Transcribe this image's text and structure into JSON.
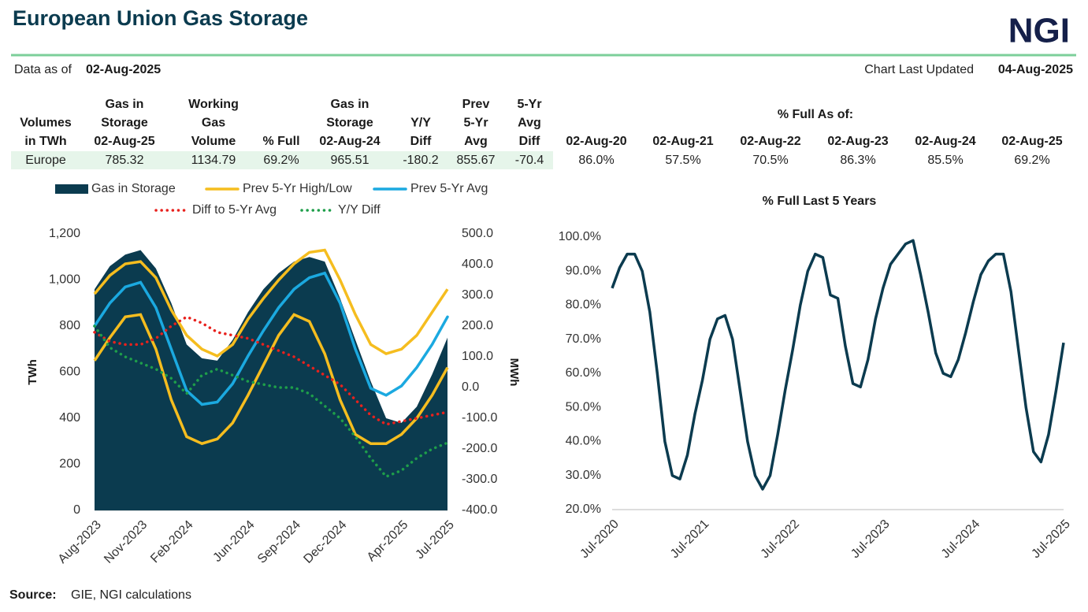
{
  "header": {
    "title": "European Union Gas Storage",
    "logo": "NGI",
    "data_as_of_label": "Data as of",
    "data_as_of": "02-Aug-2025",
    "updated_label": "Chart Last Updated",
    "updated": "04-Aug-2025"
  },
  "table": {
    "headers": [
      [
        "Volumes",
        "in TWh"
      ],
      [
        "Gas in",
        "Storage",
        "02-Aug-25"
      ],
      [
        "Working",
        "Gas",
        "Volume"
      ],
      [
        "% Full"
      ],
      [
        "Gas in",
        "Storage",
        "02-Aug-24"
      ],
      [
        "Y/Y",
        "Diff"
      ],
      [
        "Prev",
        "5-Yr",
        "Avg"
      ],
      [
        "5-Yr",
        "Avg",
        "Diff"
      ]
    ],
    "rows": [
      [
        "Europe",
        "785.32",
        "1134.79",
        "69.2%",
        "965.51",
        "-180.2",
        "855.67",
        "-70.4"
      ]
    ],
    "full_heading": "% Full As of:",
    "full_dates": [
      "02-Aug-20",
      "02-Aug-21",
      "02-Aug-22",
      "02-Aug-23",
      "02-Aug-24",
      "02-Aug-25"
    ],
    "full_values": [
      "86.0%",
      "57.5%",
      "70.5%",
      "86.3%",
      "85.5%",
      "69.2%"
    ]
  },
  "chart_data": [
    {
      "type": "combo",
      "ylabel": "TWh",
      "y2label": "MWh",
      "categories": [
        "Aug-2023",
        null,
        null,
        "Nov-2023",
        null,
        null,
        "Feb-2024",
        null,
        null,
        null,
        "Jun-2024",
        null,
        null,
        "Sep-2024",
        null,
        null,
        "Dec-2024",
        null,
        null,
        null,
        "Apr-2025",
        null,
        null,
        "Jul-2025"
      ],
      "ylim": [
        0,
        1200
      ],
      "yticks": [
        0,
        200,
        400,
        600,
        800,
        {
          "value": 1000,
          "label": "1,000"
        },
        {
          "value": 1200,
          "label": "1,200"
        }
      ],
      "y2lim": [
        -400,
        500
      ],
      "y2ticks": [
        {
          "value": -400,
          "label": "-400.0"
        },
        {
          "value": -300,
          "label": "-300.0"
        },
        {
          "value": -200,
          "label": "-200.0"
        },
        {
          "value": -100,
          "label": "-100.0"
        },
        {
          "value": 0,
          "label": "0.0"
        },
        {
          "value": 100,
          "label": "100.0"
        },
        {
          "value": 200,
          "label": "200.0"
        },
        {
          "value": 300,
          "label": "300.0"
        },
        {
          "value": 400,
          "label": "400.0"
        },
        {
          "value": 500,
          "label": "500.0"
        }
      ],
      "grid": false,
      "series": [
        {
          "name": "Gas in Storage",
          "kind": "area",
          "color": "#0b3b4f",
          "values": [
            960,
            1060,
            1110,
            1130,
            1050,
            900,
            720,
            660,
            650,
            740,
            860,
            960,
            1030,
            1080,
            1100,
            1080,
            920,
            740,
            560,
            400,
            380,
            450,
            590,
            750
          ]
        },
        {
          "name": "Prev 5-Yr High/Low",
          "kind": "band",
          "color": "#f5bd1f",
          "high": [
            940,
            1020,
            1070,
            1080,
            1010,
            870,
            760,
            700,
            670,
            720,
            830,
            920,
            1000,
            1070,
            1120,
            1130,
            1000,
            850,
            720,
            680,
            700,
            760,
            860,
            960
          ],
          "low": [
            650,
            750,
            840,
            850,
            700,
            480,
            320,
            290,
            310,
            380,
            500,
            630,
            760,
            850,
            820,
            680,
            480,
            330,
            290,
            290,
            330,
            400,
            500,
            620
          ]
        },
        {
          "name": "Prev 5-Yr Avg",
          "kind": "line",
          "color": "#1ba9e0",
          "values": [
            800,
            900,
            970,
            990,
            880,
            700,
            520,
            460,
            470,
            550,
            670,
            780,
            880,
            960,
            1010,
            1030,
            900,
            700,
            530,
            500,
            540,
            620,
            720,
            840
          ]
        },
        {
          "name": "Diff to 5-Yr Avg",
          "kind": "dotted",
          "axis": "y2",
          "color": "#e8211d",
          "values": [
            180,
            150,
            140,
            140,
            160,
            200,
            230,
            210,
            180,
            170,
            160,
            140,
            120,
            100,
            70,
            40,
            10,
            -40,
            -90,
            -120,
            -110,
            -100,
            -90,
            -80
          ]
        },
        {
          "name": "Y/Y Diff",
          "kind": "dotted",
          "axis": "y2",
          "color": "#1e9e4a",
          "values": [
            200,
            130,
            100,
            80,
            60,
            30,
            -20,
            40,
            60,
            40,
            20,
            10,
            0,
            0,
            -20,
            -60,
            -100,
            -160,
            -230,
            -290,
            -270,
            -230,
            -200,
            -180
          ]
        }
      ]
    },
    {
      "type": "line",
      "title": "% Full Last 5 Years",
      "categories": [
        "Jul-2020",
        null,
        null,
        null,
        null,
        null,
        null,
        null,
        null,
        null,
        null,
        null,
        "Jul-2021",
        null,
        null,
        null,
        null,
        null,
        null,
        null,
        null,
        null,
        null,
        null,
        "Jul-2022",
        null,
        null,
        null,
        null,
        null,
        null,
        null,
        null,
        null,
        null,
        null,
        "Jul-2023",
        null,
        null,
        null,
        null,
        null,
        null,
        null,
        null,
        null,
        null,
        null,
        "Jul-2024",
        null,
        null,
        null,
        null,
        null,
        null,
        null,
        null,
        null,
        null,
        null,
        "Jul-2025"
      ],
      "ylim": [
        20,
        100
      ],
      "yticks": [
        {
          "value": 20,
          "label": "20.0%"
        },
        {
          "value": 30,
          "label": "30.0%"
        },
        {
          "value": 40,
          "label": "40.0%"
        },
        {
          "value": 50,
          "label": "50.0%"
        },
        {
          "value": 60,
          "label": "60.0%"
        },
        {
          "value": 70,
          "label": "70.0%"
        },
        {
          "value": 80,
          "label": "80.0%"
        },
        {
          "value": 90,
          "label": "90.0%"
        },
        {
          "value": 100,
          "label": "100.0%"
        }
      ],
      "grid": false,
      "color": "#0b3b4f",
      "values": [
        85,
        91,
        95,
        95,
        90,
        78,
        60,
        40,
        30,
        29,
        36,
        48,
        58,
        70,
        76,
        77,
        70,
        55,
        40,
        30,
        26,
        30,
        42,
        55,
        67,
        80,
        90,
        95,
        94,
        83,
        82,
        68,
        57,
        56,
        64,
        76,
        85,
        92,
        95,
        98,
        99,
        89,
        78,
        66,
        60,
        59,
        64,
        72,
        81,
        89,
        93,
        95,
        95,
        84,
        67,
        50,
        37,
        34,
        42,
        55,
        69
      ]
    }
  ],
  "source": {
    "label": "Source:",
    "text": "GIE, NGI calculations"
  }
}
